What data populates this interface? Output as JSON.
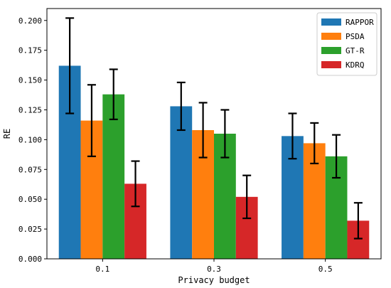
{
  "chart_data": {
    "type": "bar",
    "title": "",
    "xlabel": "Privacy budget",
    "ylabel": "RE",
    "categories": [
      "0.1",
      "0.3",
      "0.5"
    ],
    "ylim": [
      0,
      0.21
    ],
    "yticks": [
      "0.000",
      "0.025",
      "0.050",
      "0.075",
      "0.100",
      "0.125",
      "0.150",
      "0.175",
      "0.200"
    ],
    "grid": false,
    "legend_position": "top-right",
    "series": [
      {
        "name": "RAPPOR",
        "color": "#1f77b4",
        "values": [
          0.162,
          0.128,
          0.103
        ],
        "err_low": [
          0.122,
          0.108,
          0.084
        ],
        "err_high": [
          0.202,
          0.148,
          0.122
        ]
      },
      {
        "name": "PSDA",
        "color": "#ff7f0e",
        "values": [
          0.116,
          0.108,
          0.097
        ],
        "err_low": [
          0.086,
          0.085,
          0.08
        ],
        "err_high": [
          0.146,
          0.131,
          0.114
        ]
      },
      {
        "name": "GT-R",
        "color": "#2ca02c",
        "values": [
          0.138,
          0.105,
          0.086
        ],
        "err_low": [
          0.117,
          0.085,
          0.068
        ],
        "err_high": [
          0.159,
          0.125,
          0.104
        ]
      },
      {
        "name": "KDRQ",
        "color": "#d62728",
        "values": [
          0.063,
          0.052,
          0.032
        ],
        "err_low": [
          0.044,
          0.034,
          0.017
        ],
        "err_high": [
          0.082,
          0.07,
          0.047
        ]
      }
    ]
  }
}
